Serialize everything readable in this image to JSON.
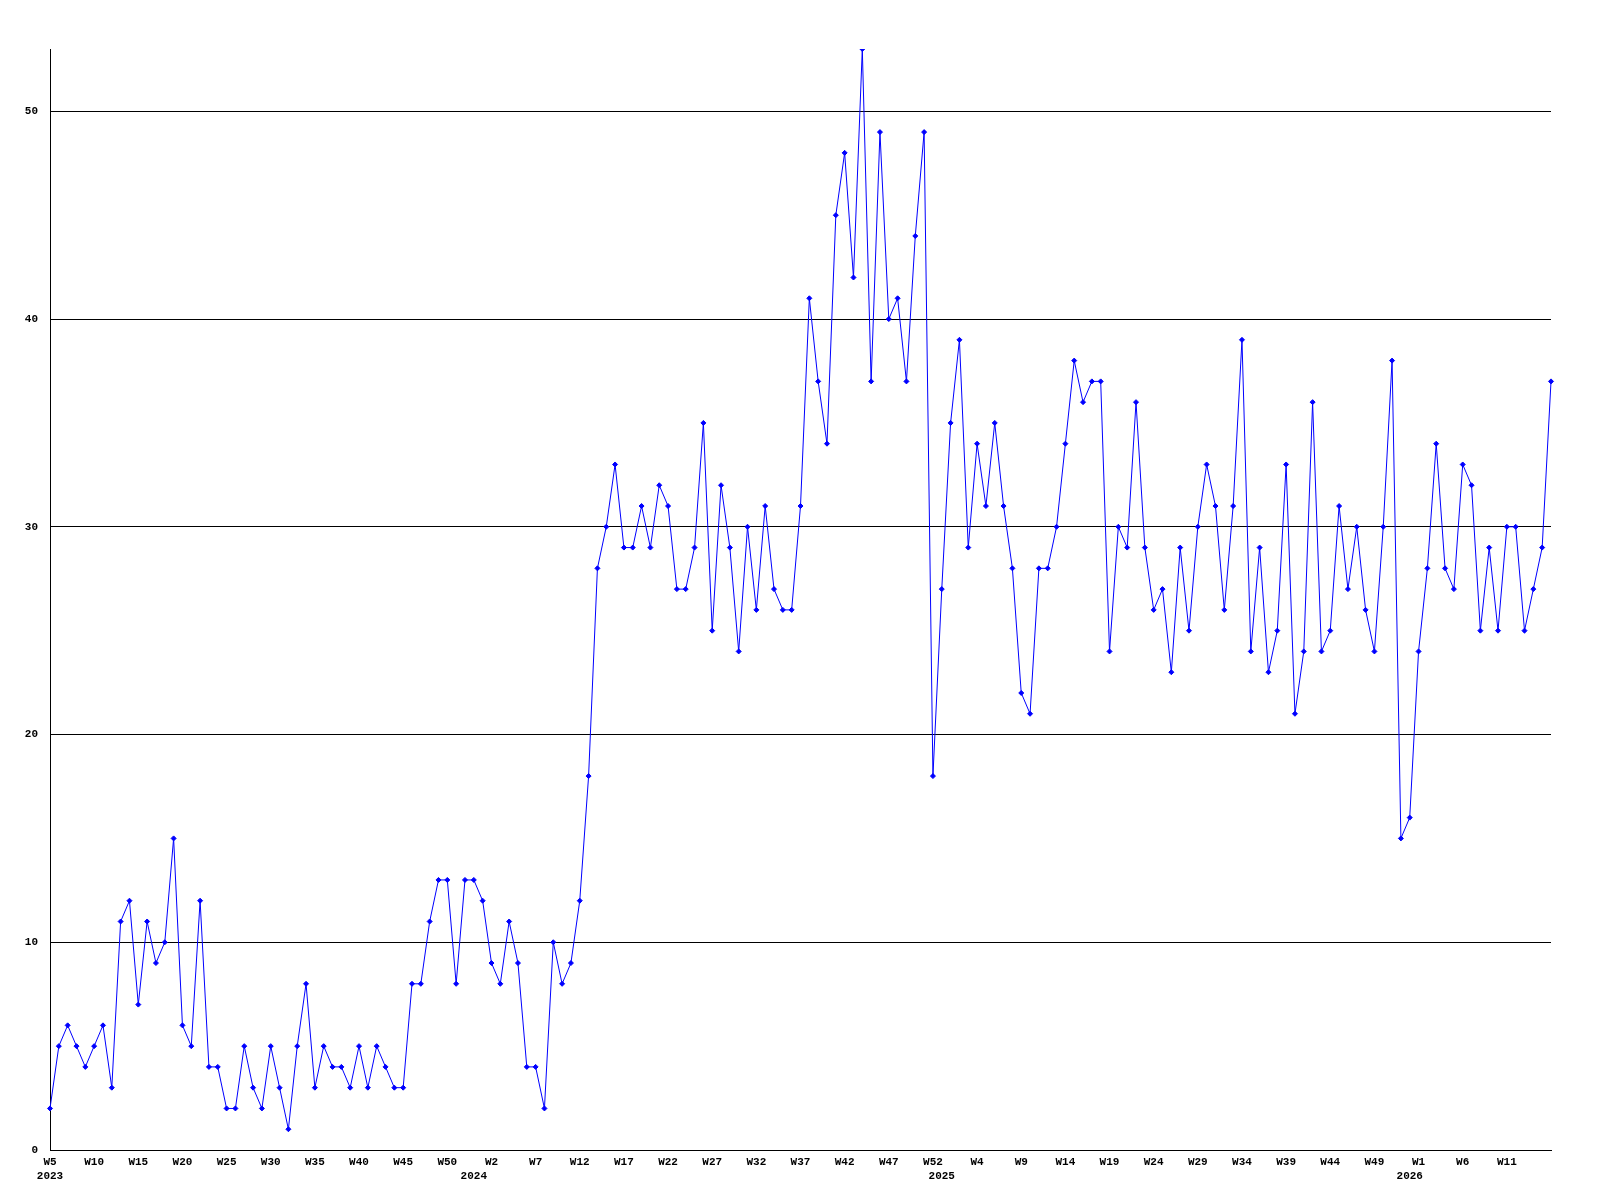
{
  "chart_data": {
    "type": "line",
    "categories": [
      "W5\n2023",
      null,
      null,
      null,
      null,
      "W10",
      null,
      null,
      null,
      null,
      "W15",
      null,
      null,
      null,
      null,
      "W20",
      null,
      null,
      null,
      null,
      "W25",
      null,
      null,
      null,
      null,
      "W30",
      null,
      null,
      null,
      null,
      "W35",
      null,
      null,
      null,
      null,
      "W40",
      null,
      null,
      null,
      null,
      "W45",
      null,
      null,
      null,
      null,
      "W50",
      null,
      null,
      "\n2024",
      null,
      "W2",
      null,
      null,
      null,
      null,
      "W7",
      null,
      null,
      null,
      null,
      "W12",
      null,
      null,
      null,
      null,
      "W17",
      null,
      null,
      null,
      null,
      "W22",
      null,
      null,
      null,
      null,
      "W27",
      null,
      null,
      null,
      null,
      "W32",
      null,
      null,
      null,
      null,
      "W37",
      null,
      null,
      null,
      null,
      "W42",
      null,
      null,
      null,
      null,
      "W47",
      null,
      null,
      null,
      null,
      "W52",
      "\n2025",
      null,
      null,
      null,
      "W4",
      null,
      null,
      null,
      null,
      "W9",
      null,
      null,
      null,
      null,
      "W14",
      null,
      null,
      null,
      null,
      "W19",
      null,
      null,
      null,
      null,
      "W24",
      null,
      null,
      null,
      null,
      "W29",
      null,
      null,
      null,
      null,
      "W34",
      null,
      null,
      null,
      null,
      "W39",
      null,
      null,
      null,
      null,
      "W44",
      null,
      null,
      null,
      null,
      "W49",
      null,
      null,
      null,
      "\n2026",
      "W1",
      null,
      null,
      null,
      null,
      "W6",
      null,
      null,
      null,
      null,
      "W11",
      null,
      null,
      null,
      null,
      null
    ],
    "series": [
      {
        "color": "#0000ff",
        "values": [
          2,
          5,
          6,
          5,
          4,
          5,
          6,
          3,
          11,
          12,
          7,
          11,
          9,
          10,
          15,
          6,
          5,
          12,
          4,
          4,
          2,
          2,
          5,
          3,
          2,
          5,
          3,
          1,
          5,
          8,
          3,
          5,
          4,
          4,
          3,
          5,
          3,
          5,
          4,
          3,
          3,
          8,
          8,
          11,
          13,
          13,
          8,
          13,
          13,
          12,
          9,
          8,
          11,
          9,
          4,
          4,
          2,
          10,
          8,
          9,
          12,
          18,
          28,
          30,
          33,
          29,
          29,
          31,
          29,
          32,
          31,
          27,
          27,
          29,
          35,
          25,
          32,
          29,
          24,
          30,
          26,
          31,
          27,
          26,
          26,
          31,
          41,
          37,
          34,
          45,
          48,
          42,
          53,
          37,
          49,
          40,
          41,
          37,
          44,
          49,
          18,
          27,
          35,
          39,
          29,
          34,
          31,
          35,
          31,
          28,
          22,
          21,
          28,
          28,
          30,
          34,
          38,
          36,
          37,
          37,
          24,
          30,
          29,
          36,
          29,
          26,
          27,
          23,
          29,
          25,
          30,
          33,
          31,
          26,
          31,
          39,
          24,
          29,
          23,
          25,
          33,
          21,
          24,
          36,
          24,
          25,
          31,
          27,
          30,
          26,
          24,
          30,
          38,
          15,
          16,
          24,
          28,
          34,
          28,
          27,
          33,
          32,
          25,
          29,
          25,
          30,
          30,
          25,
          27,
          29,
          37
        ]
      }
    ],
    "ylim": [
      0,
      53
    ],
    "yticks": [
      0,
      10,
      20,
      30,
      40,
      50
    ],
    "grid": "y",
    "legend": false,
    "marker": "diamond",
    "line_style": "solid"
  }
}
